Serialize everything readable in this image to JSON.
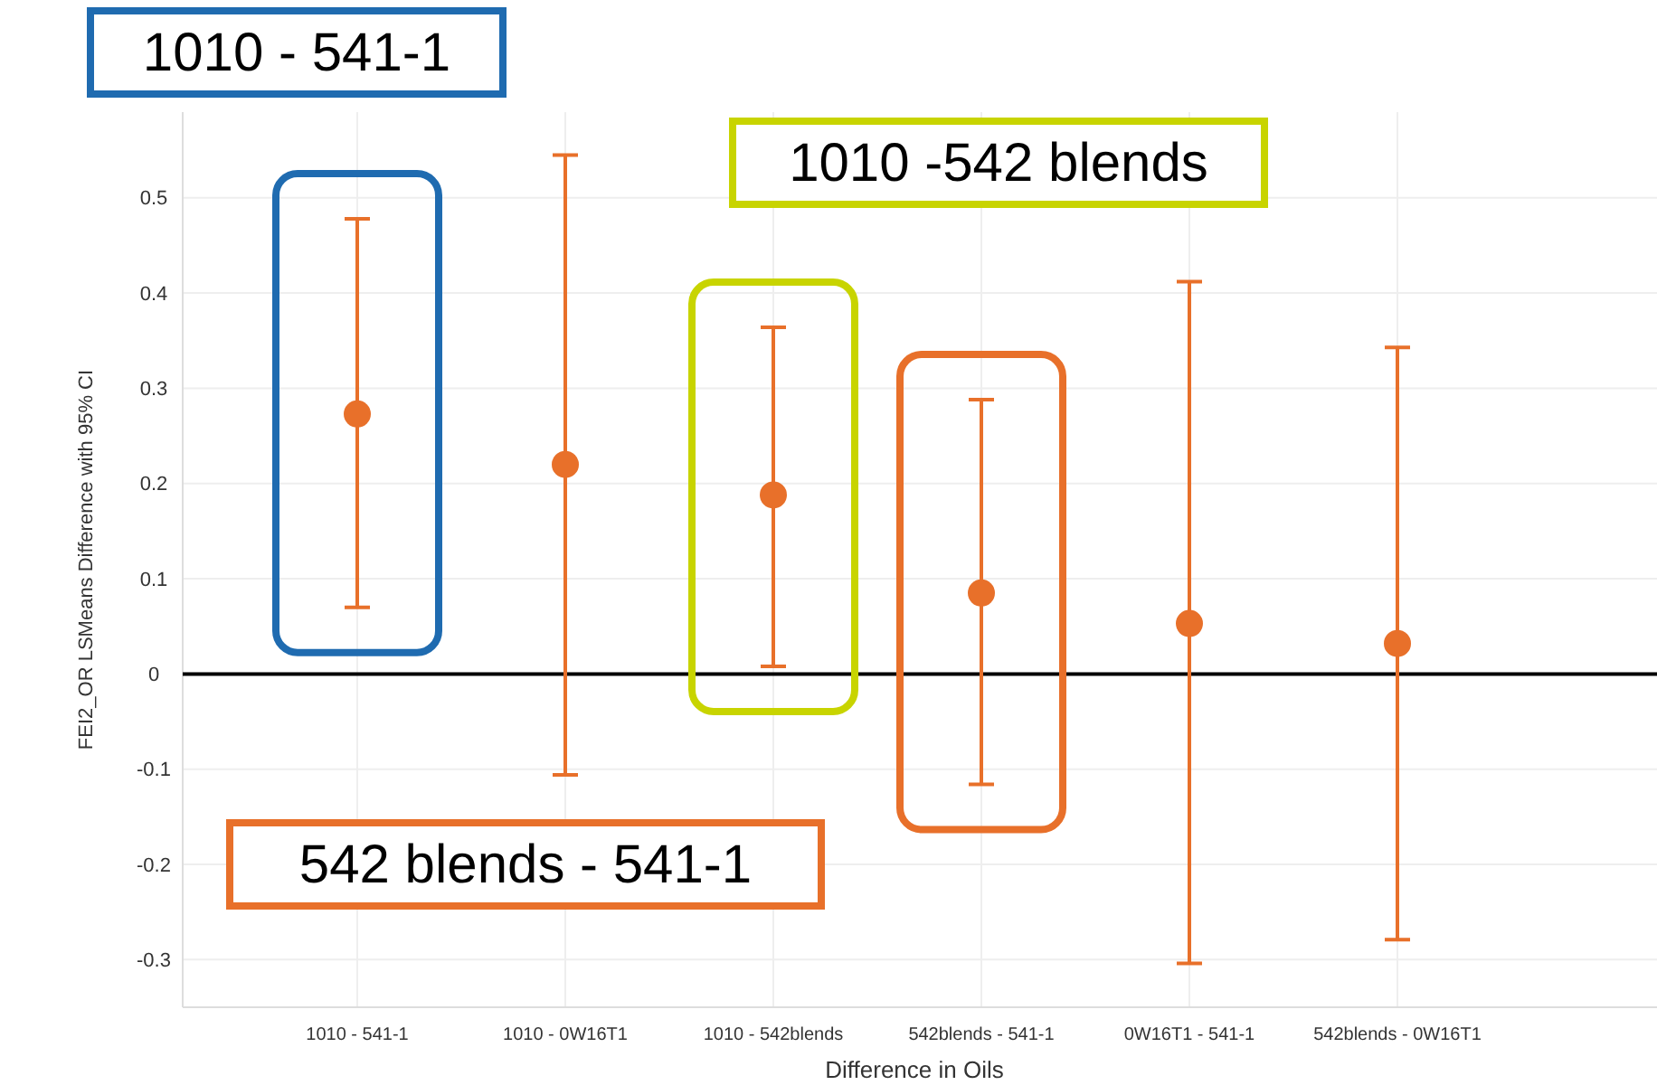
{
  "chart_data": {
    "type": "scatter",
    "xlabel": "Difference in Oils",
    "ylabel": "FEI2_OR LSMeans Difference with 95% CI",
    "categories": [
      "1010 - 541-1",
      "1010 - 0W16T1",
      "1010 - 542blends",
      "542blends - 541-1",
      "0W16T1 - 541-1",
      "542blends - 0W16T1"
    ],
    "values": [
      0.273,
      0.22,
      0.188,
      0.085,
      0.053,
      0.032
    ],
    "errors": [
      [
        0.07,
        0.478
      ],
      [
        -0.106,
        0.545
      ],
      [
        0.008,
        0.364
      ],
      [
        -0.116,
        0.288
      ],
      [
        -0.304,
        0.412
      ],
      [
        -0.279,
        0.343
      ]
    ],
    "color": "#e8702a",
    "marker": "circle",
    "ylim": [
      -0.35,
      0.59
    ],
    "grid": true,
    "yticks": [
      -0.3,
      -0.2,
      -0.1,
      0,
      0.1,
      0.2,
      0.3,
      0.4,
      0.5
    ],
    "ref_lines": [
      {
        "axis": "y",
        "value": 0,
        "color": "#000000"
      }
    ],
    "annotations": [
      "1010 - 541-1",
      "1010 -542 blends",
      "542 blends - 541-1"
    ]
  }
}
